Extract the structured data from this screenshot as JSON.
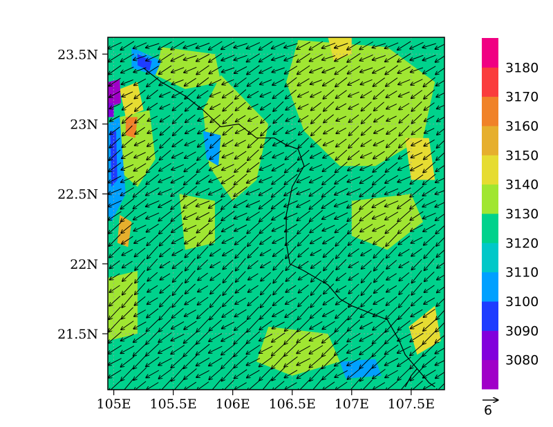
{
  "chart_data": {
    "type": "heatmap",
    "title": "",
    "xlabel": "",
    "ylabel": "",
    "xlim": [
      104.95,
      107.78
    ],
    "ylim": [
      21.1,
      23.62
    ],
    "x_ticks": [
      {
        "value": 105.0,
        "label": "105E"
      },
      {
        "value": 105.5,
        "label": "105.5E"
      },
      {
        "value": 106.0,
        "label": "106E"
      },
      {
        "value": 106.5,
        "label": "106.5E"
      },
      {
        "value": 107.0,
        "label": "107E"
      },
      {
        "value": 107.5,
        "label": "107.5E"
      }
    ],
    "y_ticks": [
      {
        "value": 21.5,
        "label": "21.5N"
      },
      {
        "value": 22.0,
        "label": "22N"
      },
      {
        "value": 22.5,
        "label": "22.5N"
      },
      {
        "value": 23.0,
        "label": "23N"
      },
      {
        "value": 23.5,
        "label": "23.5N"
      }
    ],
    "colorbar": {
      "levels": [
        {
          "value": 3080,
          "label": "3080",
          "color": "#a000c8"
        },
        {
          "value": 3090,
          "label": "3090",
          "color": "#8200dc"
        },
        {
          "value": 3100,
          "label": "3100",
          "color": "#1e3cff"
        },
        {
          "value": 3110,
          "label": "3110",
          "color": "#00a0ff"
        },
        {
          "value": 3120,
          "label": "3120",
          "color": "#00c8c8"
        },
        {
          "value": 3130,
          "label": "3130",
          "color": "#00d28c"
        },
        {
          "value": 3140,
          "label": "3140",
          "color": "#a0e632"
        },
        {
          "value": 3150,
          "label": "3150",
          "color": "#e6dc32"
        },
        {
          "value": 3160,
          "label": "3160",
          "color": "#e6af2d"
        },
        {
          "value": 3170,
          "label": "3170",
          "color": "#f08228"
        },
        {
          "value": 3180,
          "label": "3180",
          "color": "#fa3c3c"
        }
      ],
      "top_color": "#f00082"
    },
    "field_regions": [
      {
        "value": 3140,
        "points": [
          [
            105.9,
            23.35
          ],
          [
            106.3,
            23.0
          ],
          [
            106.2,
            22.6
          ],
          [
            106.0,
            22.45
          ],
          [
            105.8,
            22.7
          ],
          [
            105.75,
            23.1
          ]
        ]
      },
      {
        "value": 3140,
        "points": [
          [
            106.55,
            23.6
          ],
          [
            107.3,
            23.55
          ],
          [
            107.7,
            23.3
          ],
          [
            107.6,
            22.9
          ],
          [
            107.2,
            22.7
          ],
          [
            106.9,
            22.7
          ],
          [
            106.6,
            22.95
          ],
          [
            106.45,
            23.3
          ]
        ]
      },
      {
        "value": 3140,
        "points": [
          [
            107.0,
            22.45
          ],
          [
            107.5,
            22.5
          ],
          [
            107.6,
            22.3
          ],
          [
            107.3,
            22.1
          ],
          [
            107.0,
            22.2
          ]
        ]
      },
      {
        "value": 3140,
        "points": [
          [
            105.4,
            23.55
          ],
          [
            105.85,
            23.5
          ],
          [
            105.9,
            23.3
          ],
          [
            105.6,
            23.25
          ],
          [
            105.35,
            23.35
          ]
        ]
      },
      {
        "value": 3140,
        "points": [
          [
            105.05,
            23.05
          ],
          [
            105.3,
            23.1
          ],
          [
            105.35,
            22.75
          ],
          [
            105.2,
            22.55
          ],
          [
            105.0,
            22.7
          ]
        ]
      },
      {
        "value": 3140,
        "points": [
          [
            105.55,
            22.5
          ],
          [
            105.85,
            22.45
          ],
          [
            105.85,
            22.15
          ],
          [
            105.6,
            22.1
          ]
        ]
      },
      {
        "value": 3140,
        "points": [
          [
            106.3,
            21.55
          ],
          [
            106.8,
            21.5
          ],
          [
            106.9,
            21.3
          ],
          [
            106.5,
            21.2
          ],
          [
            106.2,
            21.3
          ]
        ]
      },
      {
        "value": 3140,
        "points": [
          [
            104.95,
            21.9
          ],
          [
            105.2,
            21.95
          ],
          [
            105.2,
            21.5
          ],
          [
            104.95,
            21.45
          ]
        ]
      },
      {
        "value": 3150,
        "points": [
          [
            105.05,
            23.25
          ],
          [
            105.2,
            23.3
          ],
          [
            105.25,
            23.1
          ],
          [
            105.1,
            23.05
          ]
        ]
      },
      {
        "value": 3150,
        "points": [
          [
            106.8,
            23.62
          ],
          [
            107.0,
            23.62
          ],
          [
            107.0,
            23.5
          ],
          [
            106.85,
            23.45
          ]
        ]
      },
      {
        "value": 3150,
        "points": [
          [
            107.45,
            22.9
          ],
          [
            107.65,
            22.9
          ],
          [
            107.7,
            22.6
          ],
          [
            107.5,
            22.6
          ]
        ]
      },
      {
        "value": 3150,
        "points": [
          [
            107.48,
            21.55
          ],
          [
            107.7,
            21.7
          ],
          [
            107.75,
            21.45
          ],
          [
            107.55,
            21.35
          ]
        ]
      },
      {
        "value": 3160,
        "points": [
          [
            105.05,
            22.35
          ],
          [
            105.15,
            22.3
          ],
          [
            105.12,
            22.12
          ],
          [
            105.03,
            22.15
          ]
        ]
      },
      {
        "value": 3170,
        "points": [
          [
            105.1,
            23.05
          ],
          [
            105.2,
            23.05
          ],
          [
            105.18,
            22.9
          ],
          [
            105.1,
            22.92
          ]
        ]
      },
      {
        "value": 3110,
        "points": [
          [
            104.95,
            23.0
          ],
          [
            105.05,
            23.05
          ],
          [
            105.1,
            22.5
          ],
          [
            104.98,
            22.3
          ],
          [
            104.95,
            22.35
          ]
        ]
      },
      {
        "value": 3100,
        "points": [
          [
            104.97,
            22.95
          ],
          [
            105.02,
            22.95
          ],
          [
            105.03,
            22.6
          ],
          [
            104.98,
            22.55
          ]
        ]
      },
      {
        "value": 3110,
        "points": [
          [
            105.15,
            23.55
          ],
          [
            105.4,
            23.45
          ],
          [
            105.35,
            23.35
          ],
          [
            105.15,
            23.4
          ]
        ]
      },
      {
        "value": 3100,
        "points": [
          [
            105.2,
            23.5
          ],
          [
            105.32,
            23.45
          ],
          [
            105.3,
            23.38
          ],
          [
            105.2,
            23.42
          ]
        ]
      },
      {
        "value": 3080,
        "points": [
          [
            104.95,
            23.3
          ],
          [
            105.05,
            23.32
          ],
          [
            105.06,
            23.15
          ],
          [
            104.95,
            23.12
          ]
        ]
      },
      {
        "value": 3090,
        "points": [
          [
            104.95,
            23.15
          ],
          [
            105.0,
            23.15
          ],
          [
            105.0,
            23.05
          ],
          [
            104.95,
            23.05
          ]
        ]
      },
      {
        "value": 3110,
        "points": [
          [
            105.75,
            22.95
          ],
          [
            105.9,
            22.92
          ],
          [
            105.88,
            22.7
          ],
          [
            105.78,
            22.75
          ]
        ]
      },
      {
        "value": 3110,
        "points": [
          [
            106.9,
            21.3
          ],
          [
            107.2,
            21.32
          ],
          [
            107.25,
            21.2
          ],
          [
            106.95,
            21.18
          ]
        ]
      }
    ],
    "border_line": [
      [
        105.25,
        23.4
      ],
      [
        105.4,
        23.3
      ],
      [
        105.6,
        23.2
      ],
      [
        105.75,
        23.1
      ],
      [
        105.9,
        22.98
      ],
      [
        106.05,
        23.0
      ],
      [
        106.2,
        22.9
      ],
      [
        106.35,
        22.9
      ],
      [
        106.45,
        22.85
      ],
      [
        106.55,
        22.82
      ],
      [
        106.6,
        22.7
      ],
      [
        106.5,
        22.55
      ],
      [
        106.45,
        22.35
      ],
      [
        106.45,
        22.15
      ],
      [
        106.48,
        22.0
      ],
      [
        106.6,
        21.95
      ],
      [
        106.7,
        21.9
      ],
      [
        106.8,
        21.85
      ],
      [
        106.9,
        21.75
      ],
      [
        107.0,
        21.7
      ],
      [
        107.15,
        21.65
      ],
      [
        107.3,
        21.6
      ],
      [
        107.4,
        21.45
      ],
      [
        107.45,
        21.35
      ],
      [
        107.5,
        21.3
      ],
      [
        107.55,
        21.25
      ],
      [
        107.6,
        21.2
      ],
      [
        107.65,
        21.15
      ],
      [
        107.7,
        21.12
      ]
    ],
    "border_line_2": [
      [
        107.45,
        21.12
      ],
      [
        107.5,
        21.2
      ],
      [
        107.55,
        21.25
      ]
    ],
    "wind_vector_field": {
      "reference_vector_label": "6",
      "reference_vector_value": 6,
      "u_mean": -4.6,
      "v_mean": -4.2
    }
  }
}
